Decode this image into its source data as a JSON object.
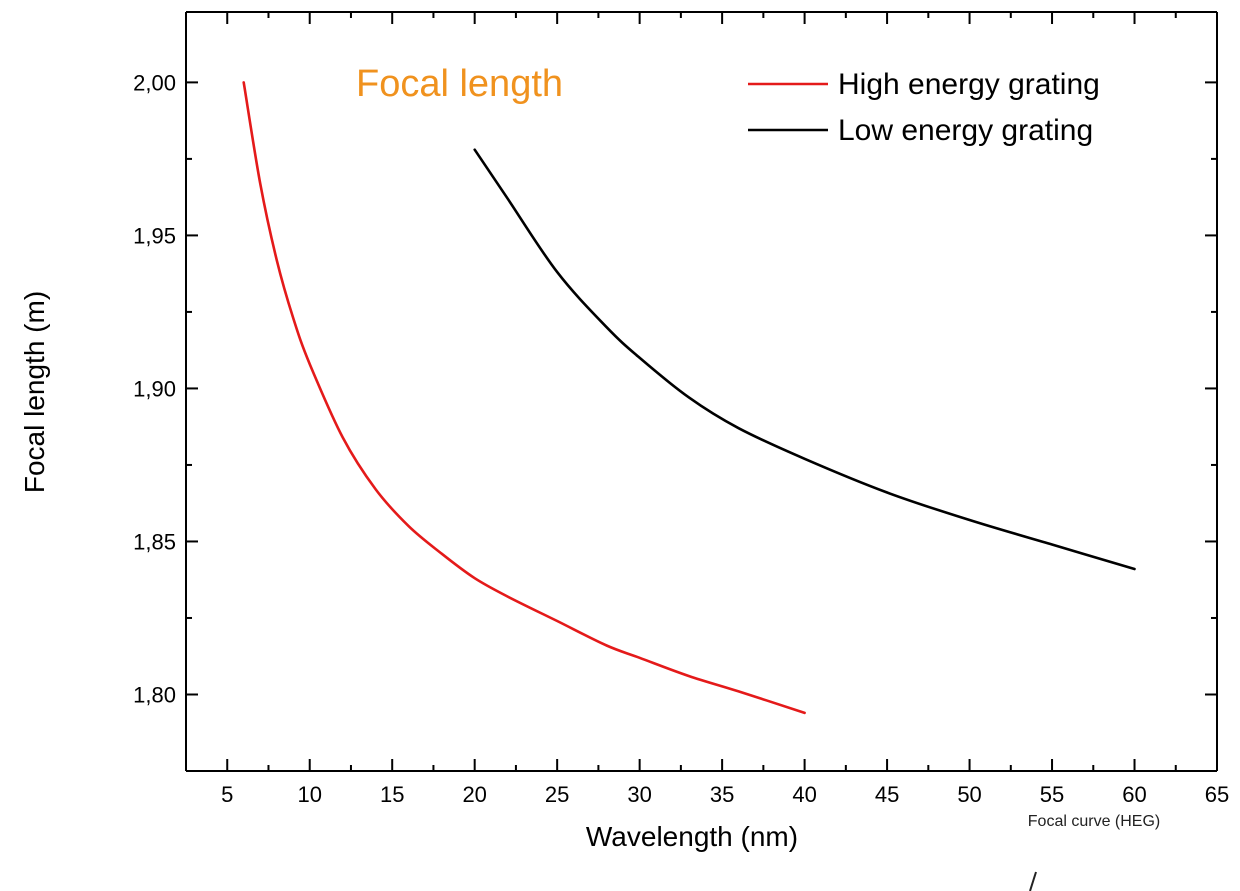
{
  "chart_data": {
    "type": "line",
    "title": "Focal length",
    "title_color": "#f0921e",
    "xlabel": "Wavelength (nm)",
    "ylabel": "Focal length (m)",
    "xlim": [
      2.5,
      65
    ],
    "ylim": [
      1.775,
      2.023
    ],
    "x_ticks": [
      5,
      10,
      15,
      20,
      25,
      30,
      35,
      40,
      45,
      50,
      55,
      60,
      65
    ],
    "x_tick_labels": [
      "5",
      "10",
      "15",
      "20",
      "25",
      "30",
      "35",
      "40",
      "45",
      "50",
      "55",
      "60",
      "65"
    ],
    "y_ticks": [
      1.8,
      1.85,
      1.9,
      1.95,
      2.0
    ],
    "y_tick_labels": [
      "1,80",
      "1,85",
      "1,90",
      "1,95",
      "2,00"
    ],
    "grid": false,
    "legend_position": "top-right",
    "series": [
      {
        "name": "High energy grating",
        "color": "#e41a1a",
        "x": [
          6,
          7,
          8,
          9,
          10,
          12,
          14,
          16,
          18,
          20,
          22,
          25,
          28,
          30,
          33,
          36,
          40
        ],
        "y": [
          2.0,
          1.967,
          1.942,
          1.923,
          1.908,
          1.884,
          1.867,
          1.855,
          1.846,
          1.838,
          1.832,
          1.824,
          1.816,
          1.812,
          1.806,
          1.801,
          1.794
        ]
      },
      {
        "name": "Low energy grating",
        "color": "#000000",
        "x": [
          20,
          22,
          25,
          28,
          30,
          33,
          36,
          40,
          45,
          50,
          55,
          60
        ],
        "y": [
          1.978,
          1.962,
          1.938,
          1.92,
          1.91,
          1.897,
          1.887,
          1.877,
          1.866,
          1.857,
          1.849,
          1.841
        ]
      }
    ],
    "annotations": [
      "Focal curve (HEG)"
    ]
  }
}
